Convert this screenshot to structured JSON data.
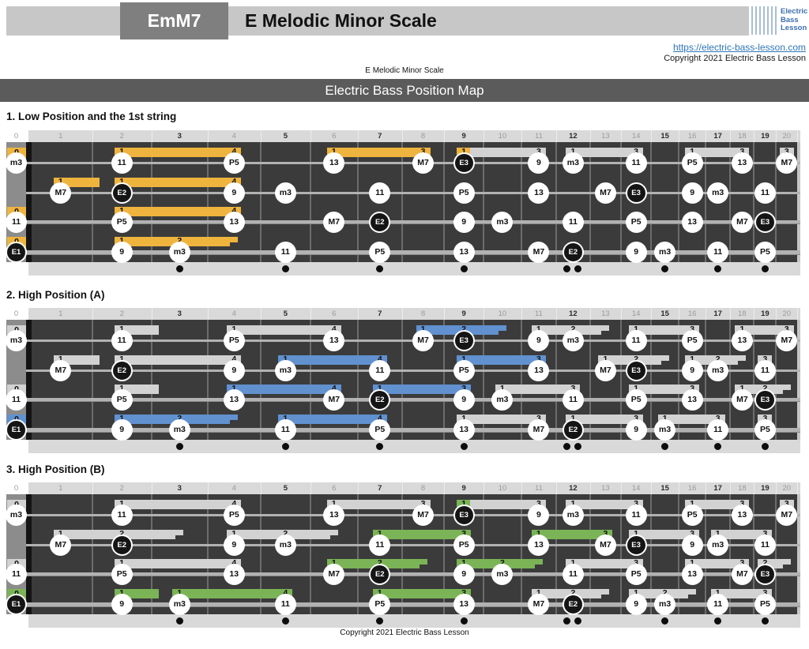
{
  "header": {
    "chord_code": "EmM7",
    "title": "E Melodic Minor Scale",
    "logo_lines": [
      "Electric",
      "Bass",
      "Lesson"
    ],
    "link": "https://electric-bass-lesson.com",
    "copyright": "Copyright 2021 Electric Bass Lesson",
    "subtitle": "E Melodic Minor Scale",
    "banner": "Electric Bass Position Map"
  },
  "footer": {
    "copyright": "Copyright 2021 Electric Bass Lesson"
  },
  "colors": {
    "accent_orange": "#EFB43E",
    "accent_blue": "#6191CF",
    "accent_green": "#7AB456",
    "bar_gray": "#D2D2D2",
    "board": "#3B3B3B",
    "nut_zone": "#8C8C8C",
    "strip": "#D9D9D9",
    "banner_gray": "#C7C7C7",
    "chord_box_gray": "#7F7F7F",
    "title_bar_gray": "#5B5B5B",
    "link_blue": "#2E75B6",
    "logo_blue": "#3E6FB0"
  },
  "fretboard": {
    "fret_count": 20,
    "strings_count": 4,
    "fret_numbers": [
      "0",
      "1",
      "2",
      "3",
      "4",
      "5",
      "6",
      "7",
      "8",
      "9",
      "10",
      "11",
      "12",
      "13",
      "14",
      "15",
      "16",
      "17",
      "18",
      "19",
      "20"
    ],
    "bold_frets": [
      3,
      5,
      7,
      9,
      12,
      15,
      17,
      19
    ],
    "dot_frets": [
      3,
      5,
      7,
      9,
      15,
      17,
      19
    ],
    "double_dot_fret": 12
  },
  "notes": [
    {
      "s": 0,
      "f": 0,
      "t": "m3"
    },
    {
      "s": 0,
      "f": 2,
      "t": "11"
    },
    {
      "s": 0,
      "f": 4,
      "t": "P5"
    },
    {
      "s": 0,
      "f": 6,
      "t": "13"
    },
    {
      "s": 0,
      "f": 8,
      "t": "M7"
    },
    {
      "s": 0,
      "f": 9,
      "t": "E3",
      "root": true
    },
    {
      "s": 0,
      "f": 11,
      "t": "9"
    },
    {
      "s": 0,
      "f": 12,
      "t": "m3"
    },
    {
      "s": 0,
      "f": 14,
      "t": "11"
    },
    {
      "s": 0,
      "f": 16,
      "t": "P5"
    },
    {
      "s": 0,
      "f": 18,
      "t": "13"
    },
    {
      "s": 0,
      "f": 20,
      "t": "M7"
    },
    {
      "s": 1,
      "f": 1,
      "t": "M7"
    },
    {
      "s": 1,
      "f": 2,
      "t": "E2",
      "root": true
    },
    {
      "s": 1,
      "f": 4,
      "t": "9"
    },
    {
      "s": 1,
      "f": 5,
      "t": "m3"
    },
    {
      "s": 1,
      "f": 7,
      "t": "11"
    },
    {
      "s": 1,
      "f": 9,
      "t": "P5"
    },
    {
      "s": 1,
      "f": 11,
      "t": "13"
    },
    {
      "s": 1,
      "f": 13,
      "t": "M7"
    },
    {
      "s": 1,
      "f": 14,
      "t": "E3",
      "root": true
    },
    {
      "s": 1,
      "f": 16,
      "t": "9"
    },
    {
      "s": 1,
      "f": 17,
      "t": "m3"
    },
    {
      "s": 1,
      "f": 19,
      "t": "11"
    },
    {
      "s": 2,
      "f": 0,
      "t": "11"
    },
    {
      "s": 2,
      "f": 2,
      "t": "P5"
    },
    {
      "s": 2,
      "f": 4,
      "t": "13"
    },
    {
      "s": 2,
      "f": 6,
      "t": "M7"
    },
    {
      "s": 2,
      "f": 7,
      "t": "E2",
      "root": true
    },
    {
      "s": 2,
      "f": 9,
      "t": "9"
    },
    {
      "s": 2,
      "f": 10,
      "t": "m3"
    },
    {
      "s": 2,
      "f": 12,
      "t": "11"
    },
    {
      "s": 2,
      "f": 14,
      "t": "P5"
    },
    {
      "s": 2,
      "f": 16,
      "t": "13"
    },
    {
      "s": 2,
      "f": 18,
      "t": "M7"
    },
    {
      "s": 2,
      "f": 19,
      "t": "E3",
      "root": true
    },
    {
      "s": 3,
      "f": 0,
      "t": "E1",
      "root": true
    },
    {
      "s": 3,
      "f": 2,
      "t": "9"
    },
    {
      "s": 3,
      "f": 3,
      "t": "m3"
    },
    {
      "s": 3,
      "f": 5,
      "t": "11"
    },
    {
      "s": 3,
      "f": 7,
      "t": "P5"
    },
    {
      "s": 3,
      "f": 9,
      "t": "13"
    },
    {
      "s": 3,
      "f": 11,
      "t": "M7"
    },
    {
      "s": 3,
      "f": 12,
      "t": "E2",
      "root": true
    },
    {
      "s": 3,
      "f": 14,
      "t": "9"
    },
    {
      "s": 3,
      "f": 15,
      "t": "m3"
    },
    {
      "s": 3,
      "f": 17,
      "t": "11"
    },
    {
      "s": 3,
      "f": 19,
      "t": "P5"
    }
  ],
  "diagrams": [
    {
      "title": "1. Low Position and the 1st string",
      "accent": "orange",
      "open_chips": [
        {
          "s": 0,
          "c": "orange"
        },
        {
          "s": 2,
          "c": "orange"
        },
        {
          "s": 3,
          "c": "orange"
        }
      ],
      "bars": [
        {
          "s": 0,
          "f1": 2,
          "f2": 4,
          "fingers": [
            "1",
            "4"
          ],
          "c": "orange"
        },
        {
          "s": 0,
          "f1": 6,
          "f2": 8,
          "fingers": [
            "1",
            "3"
          ],
          "c": "orange"
        },
        {
          "s": 0,
          "f1": 9,
          "f2": 11,
          "fingers": [
            "1",
            "3"
          ],
          "c": "gray",
          "chip": "orange"
        },
        {
          "s": 0,
          "f1": 12,
          "f2": 14,
          "fingers": [
            "1",
            "3"
          ],
          "c": "gray"
        },
        {
          "s": 0,
          "f1": 16,
          "f2": 18,
          "fingers": [
            "1",
            "3"
          ],
          "c": "gray"
        },
        {
          "s": 0,
          "f1": 20,
          "f2": 20,
          "fingers": [
            "3"
          ],
          "c": "gray",
          "type": "chip"
        },
        {
          "s": 1,
          "f1": 1,
          "f2": 1,
          "fingers": [
            "1"
          ],
          "c": "orange",
          "type": "short"
        },
        {
          "s": 1,
          "f1": 2,
          "f2": 4,
          "fingers": [
            "1",
            "4"
          ],
          "c": "orange"
        },
        {
          "s": 2,
          "f1": 2,
          "f2": 4,
          "fingers": [
            "1",
            "4"
          ],
          "c": "orange"
        },
        {
          "s": 3,
          "f1": 2,
          "f2": 3,
          "fingers": [
            "1",
            "2"
          ],
          "c": "orange",
          "ext": true
        }
      ]
    },
    {
      "title": "2. High Position (A)",
      "accent": "blue",
      "open_chips": [
        {
          "s": 0,
          "c": "gray"
        },
        {
          "s": 2,
          "c": "gray"
        },
        {
          "s": 3,
          "c": "blue"
        }
      ],
      "bars": [
        {
          "s": 0,
          "f1": 2,
          "f2": 2,
          "fingers": [
            "1"
          ],
          "c": "gray",
          "type": "short"
        },
        {
          "s": 0,
          "f1": 4,
          "f2": 6,
          "fingers": [
            "1",
            "4"
          ],
          "c": "gray"
        },
        {
          "s": 0,
          "f1": 8,
          "f2": 9,
          "fingers": [
            "1",
            "2"
          ],
          "c": "blue",
          "ext": true
        },
        {
          "s": 0,
          "f1": 11,
          "f2": 12,
          "fingers": [
            "1",
            "2"
          ],
          "c": "gray",
          "ext": true
        },
        {
          "s": 0,
          "f1": 14,
          "f2": 16,
          "fingers": [
            "1",
            "3"
          ],
          "c": "gray"
        },
        {
          "s": 0,
          "f1": 18,
          "f2": 20,
          "fingers": [
            "1",
            "3"
          ],
          "c": "gray"
        },
        {
          "s": 1,
          "f1": 1,
          "f2": 1,
          "fingers": [
            "1"
          ],
          "c": "gray",
          "type": "short"
        },
        {
          "s": 1,
          "f1": 2,
          "f2": 4,
          "fingers": [
            "1",
            "4"
          ],
          "c": "gray"
        },
        {
          "s": 1,
          "f1": 5,
          "f2": 7,
          "fingers": [
            "1",
            "4"
          ],
          "c": "blue"
        },
        {
          "s": 1,
          "f1": 9,
          "f2": 11,
          "fingers": [
            "1",
            "3"
          ],
          "c": "blue"
        },
        {
          "s": 1,
          "f1": 13,
          "f2": 14,
          "fingers": [
            "1",
            "2"
          ],
          "c": "gray",
          "ext": true
        },
        {
          "s": 1,
          "f1": 16,
          "f2": 17,
          "fingers": [
            "1",
            "2"
          ],
          "c": "gray",
          "ext": true
        },
        {
          "s": 1,
          "f1": 19,
          "f2": 19,
          "fingers": [
            "3"
          ],
          "c": "gray",
          "type": "chip"
        },
        {
          "s": 2,
          "f1": 2,
          "f2": 2,
          "fingers": [
            "1"
          ],
          "c": "gray",
          "type": "short"
        },
        {
          "s": 2,
          "f1": 4,
          "f2": 6,
          "fingers": [
            "1",
            "4"
          ],
          "c": "blue"
        },
        {
          "s": 2,
          "f1": 7,
          "f2": 9,
          "fingers": [
            "1",
            "3"
          ],
          "c": "blue"
        },
        {
          "s": 2,
          "f1": 10,
          "f2": 12,
          "fingers": [
            "1",
            "3"
          ],
          "c": "gray"
        },
        {
          "s": 2,
          "f1": 14,
          "f2": 16,
          "fingers": [
            "1",
            "3"
          ],
          "c": "gray"
        },
        {
          "s": 2,
          "f1": 18,
          "f2": 19,
          "fingers": [
            "1",
            "2"
          ],
          "c": "gray",
          "ext": true
        },
        {
          "s": 3,
          "f1": 2,
          "f2": 3,
          "fingers": [
            "1",
            "2"
          ],
          "c": "blue",
          "ext": true
        },
        {
          "s": 3,
          "f1": 5,
          "f2": 7,
          "fingers": [
            "1",
            "4"
          ],
          "c": "blue"
        },
        {
          "s": 3,
          "f1": 9,
          "f2": 11,
          "fingers": [
            "1",
            "3"
          ],
          "c": "gray"
        },
        {
          "s": 3,
          "f1": 12,
          "f2": 14,
          "fingers": [
            "1",
            "3"
          ],
          "c": "gray"
        },
        {
          "s": 3,
          "f1": 15,
          "f2": 17,
          "fingers": [
            "1",
            "3"
          ],
          "c": "gray"
        },
        {
          "s": 3,
          "f1": 19,
          "f2": 19,
          "fingers": [
            "3"
          ],
          "c": "gray",
          "type": "chip"
        }
      ]
    },
    {
      "title": "3. High Position (B)",
      "accent": "green",
      "open_chips": [
        {
          "s": 0,
          "c": "gray"
        },
        {
          "s": 2,
          "c": "gray"
        },
        {
          "s": 3,
          "c": "green"
        }
      ],
      "bars": [
        {
          "s": 0,
          "f1": 2,
          "f2": 4,
          "fingers": [
            "1",
            "4"
          ],
          "c": "gray"
        },
        {
          "s": 0,
          "f1": 6,
          "f2": 8,
          "fingers": [
            "1",
            "3"
          ],
          "c": "gray"
        },
        {
          "s": 0,
          "f1": 9,
          "f2": 11,
          "fingers": [
            "1",
            "3"
          ],
          "c": "gray",
          "chip": "green"
        },
        {
          "s": 0,
          "f1": 12,
          "f2": 14,
          "fingers": [
            "1",
            "3"
          ],
          "c": "gray"
        },
        {
          "s": 0,
          "f1": 16,
          "f2": 18,
          "fingers": [
            "1",
            "3"
          ],
          "c": "gray"
        },
        {
          "s": 0,
          "f1": 20,
          "f2": 20,
          "fingers": [
            "3"
          ],
          "c": "gray",
          "type": "chip"
        },
        {
          "s": 1,
          "f1": 1,
          "f2": 2,
          "fingers": [
            "1",
            "2"
          ],
          "c": "gray",
          "ext": true
        },
        {
          "s": 1,
          "f1": 4,
          "f2": 5,
          "fingers": [
            "1",
            "2"
          ],
          "c": "gray",
          "ext": true
        },
        {
          "s": 1,
          "f1": 7,
          "f2": 9,
          "fingers": [
            "1",
            "3"
          ],
          "c": "green"
        },
        {
          "s": 1,
          "f1": 11,
          "f2": 13,
          "fingers": [
            "1",
            "3"
          ],
          "c": "green"
        },
        {
          "s": 1,
          "f1": 14,
          "f2": 16,
          "fingers": [
            "1",
            "3"
          ],
          "c": "gray"
        },
        {
          "s": 1,
          "f1": 17,
          "f2": 19,
          "fingers": [
            "1",
            "3"
          ],
          "c": "gray"
        },
        {
          "s": 2,
          "f1": 2,
          "f2": 4,
          "fingers": [
            "1",
            "4"
          ],
          "c": "gray"
        },
        {
          "s": 2,
          "f1": 6,
          "f2": 7,
          "fingers": [
            "1",
            "2"
          ],
          "c": "green",
          "ext": true
        },
        {
          "s": 2,
          "f1": 9,
          "f2": 10,
          "fingers": [
            "1",
            "2"
          ],
          "c": "green",
          "ext": true
        },
        {
          "s": 2,
          "f1": 12,
          "f2": 14,
          "fingers": [
            "1",
            "3"
          ],
          "c": "gray"
        },
        {
          "s": 2,
          "f1": 16,
          "f2": 18,
          "fingers": [
            "1",
            "3"
          ],
          "c": "gray"
        },
        {
          "s": 2,
          "f1": 19,
          "f2": 19,
          "fingers": [
            "2"
          ],
          "c": "gray",
          "type": "chip",
          "ext": true
        },
        {
          "s": 3,
          "f1": 2,
          "f2": 2,
          "fingers": [
            "1"
          ],
          "c": "green",
          "type": "short"
        },
        {
          "s": 3,
          "f1": 3,
          "f2": 5,
          "fingers": [
            "1",
            "4"
          ],
          "c": "green"
        },
        {
          "s": 3,
          "f1": 7,
          "f2": 9,
          "fingers": [
            "1",
            "3"
          ],
          "c": "green"
        },
        {
          "s": 3,
          "f1": 11,
          "f2": 12,
          "fingers": [
            "1",
            "2"
          ],
          "c": "gray",
          "ext": true
        },
        {
          "s": 3,
          "f1": 14,
          "f2": 15,
          "fingers": [
            "1",
            "2"
          ],
          "c": "gray",
          "ext": true
        },
        {
          "s": 3,
          "f1": 17,
          "f2": 19,
          "fingers": [
            "1",
            "3"
          ],
          "c": "gray"
        }
      ]
    }
  ]
}
